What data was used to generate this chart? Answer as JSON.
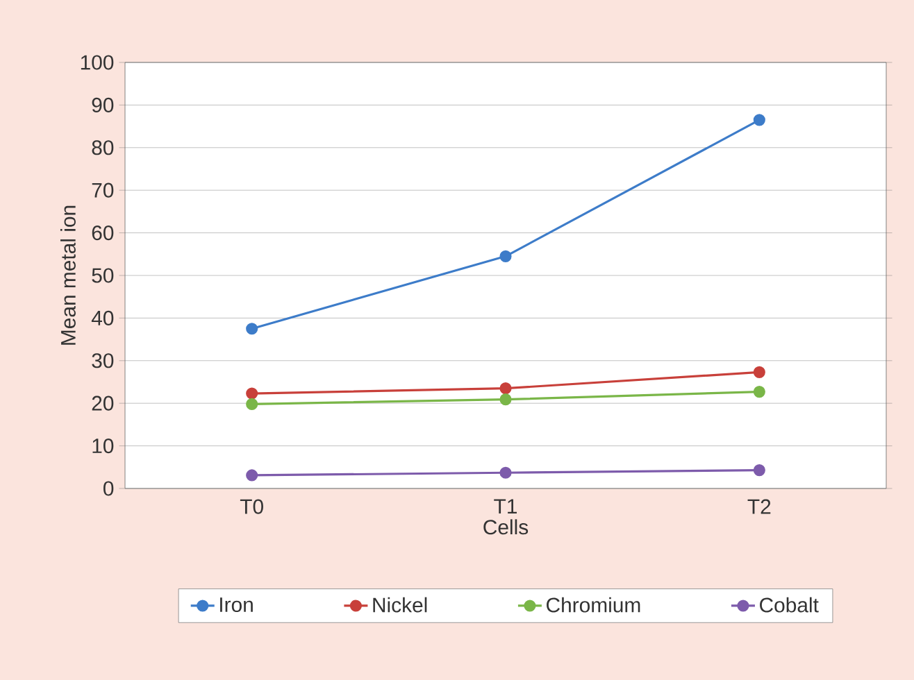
{
  "chart_data": {
    "type": "line",
    "xlabel": "Cells",
    "ylabel": "Mean metal ion",
    "categories": [
      "T0",
      "T1",
      "T2"
    ],
    "series": [
      {
        "name": "Iron",
        "color": "#3d7cc9",
        "values": [
          37.5,
          54.5,
          86.5
        ]
      },
      {
        "name": "Nickel",
        "color": "#c8403a",
        "values": [
          22.3,
          23.5,
          27.3
        ]
      },
      {
        "name": "Chromium",
        "color": "#7ab648",
        "values": [
          19.8,
          20.9,
          22.7
        ]
      },
      {
        "name": "Cobalt",
        "color": "#7d5bab",
        "values": [
          3.1,
          3.7,
          4.3
        ]
      }
    ],
    "ylim": [
      0,
      100
    ],
    "yticks": [
      0,
      10,
      20,
      30,
      40,
      50,
      60,
      70,
      80,
      90,
      100
    ],
    "grid": "y",
    "legend": "bottom",
    "marker": "circle",
    "line_style": "solid"
  }
}
